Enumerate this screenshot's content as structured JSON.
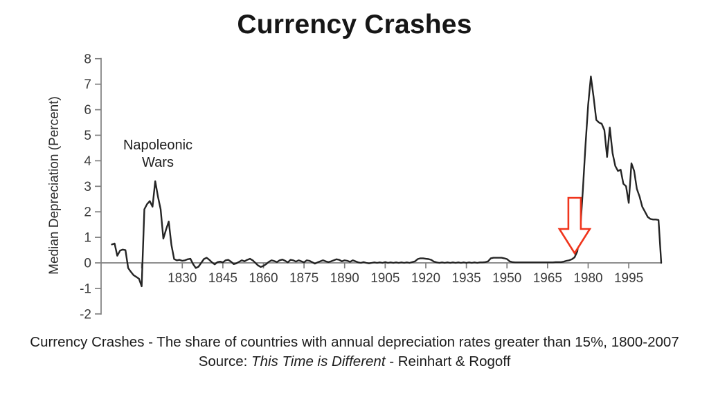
{
  "title": "Currency Crashes",
  "caption": {
    "line1": "Currency Crashes - The share of countries with annual depreciation rates greater than 15%, 1800-2007",
    "source_prefix": "Source: ",
    "source_italic": "This Time is Different",
    "source_suffix": " - Reinhart & Rogoff"
  },
  "chart_data": {
    "type": "line",
    "title": "Currency Crashes",
    "xlabel": "",
    "ylabel": "Median Depreciation (Percent)",
    "xlim": [
      1800,
      2007
    ],
    "ylim": [
      -2,
      8
    ],
    "grid": false,
    "legend": false,
    "y_ticks": [
      8,
      7,
      6,
      5,
      4,
      3,
      2,
      1,
      0,
      -1,
      -2
    ],
    "y_tick_labels": [
      "8",
      "7",
      "6",
      "5",
      "4",
      "3",
      "2",
      "1",
      "0",
      "-1",
      "-2"
    ],
    "x_ticks": [
      1815,
      1830,
      1845,
      1860,
      1875,
      1890,
      1905,
      1920,
      1935,
      1950,
      1965,
      1980,
      1995
    ],
    "x_tick_labels": [
      "",
      "1830",
      "1845",
      "1860",
      "1875",
      "1890",
      "1905",
      "1920",
      "1935",
      "1950",
      "1965",
      "1980",
      "1995"
    ],
    "line_color": "#242424",
    "axis_color": "#7e7e7e",
    "annotations": [
      {
        "id": "napoleonic-wars",
        "lines": [
          "Napoleonic",
          "Wars"
        ],
        "x_year": 1820,
        "y_value": 4.9
      },
      {
        "id": "crash-wave-arrow",
        "shape": "hollow-down-block-arrow",
        "color": "#f0351c",
        "x_year": 1975,
        "tip_y_value": 0.38
      }
    ],
    "series": [
      {
        "name": "Median depreciation (percent)",
        "points": [
          [
            1804,
            0.72
          ],
          [
            1805,
            0.76
          ],
          [
            1806,
            0.28
          ],
          [
            1807,
            0.48
          ],
          [
            1808,
            0.52
          ],
          [
            1809,
            0.5
          ],
          [
            1810,
            -0.2
          ],
          [
            1811,
            -0.35
          ],
          [
            1812,
            -0.48
          ],
          [
            1813,
            -0.55
          ],
          [
            1814,
            -0.62
          ],
          [
            1815,
            -0.92
          ],
          [
            1816,
            2.1
          ],
          [
            1817,
            2.3
          ],
          [
            1818,
            2.42
          ],
          [
            1819,
            2.2
          ],
          [
            1820,
            3.2
          ],
          [
            1821,
            2.6
          ],
          [
            1822,
            2.1
          ],
          [
            1823,
            0.95
          ],
          [
            1824,
            1.3
          ],
          [
            1825,
            1.62
          ],
          [
            1826,
            0.7
          ],
          [
            1827,
            0.15
          ],
          [
            1828,
            0.1
          ],
          [
            1829,
            0.12
          ],
          [
            1830,
            0.08
          ],
          [
            1831,
            0.1
          ],
          [
            1832,
            0.14
          ],
          [
            1833,
            0.16
          ],
          [
            1834,
            -0.05
          ],
          [
            1835,
            -0.2
          ],
          [
            1836,
            -0.15
          ],
          [
            1837,
            0.0
          ],
          [
            1838,
            0.15
          ],
          [
            1839,
            0.2
          ],
          [
            1840,
            0.12
          ],
          [
            1841,
            0.02
          ],
          [
            1842,
            -0.06
          ],
          [
            1843,
            0.03
          ],
          [
            1844,
            0.05
          ],
          [
            1845,
            0.02
          ],
          [
            1846,
            0.1
          ],
          [
            1847,
            0.12
          ],
          [
            1848,
            0.05
          ],
          [
            1849,
            -0.05
          ],
          [
            1850,
            -0.02
          ],
          [
            1851,
            0.04
          ],
          [
            1852,
            0.1
          ],
          [
            1853,
            0.06
          ],
          [
            1854,
            0.12
          ],
          [
            1855,
            0.16
          ],
          [
            1856,
            0.1
          ],
          [
            1857,
            0.0
          ],
          [
            1858,
            -0.1
          ],
          [
            1859,
            -0.16
          ],
          [
            1860,
            -0.12
          ],
          [
            1861,
            -0.05
          ],
          [
            1862,
            0.04
          ],
          [
            1863,
            0.1
          ],
          [
            1864,
            0.07
          ],
          [
            1865,
            0.03
          ],
          [
            1866,
            0.1
          ],
          [
            1867,
            0.13
          ],
          [
            1868,
            0.08
          ],
          [
            1869,
            0.02
          ],
          [
            1870,
            0.12
          ],
          [
            1871,
            0.1
          ],
          [
            1872,
            0.05
          ],
          [
            1873,
            0.1
          ],
          [
            1874,
            0.06
          ],
          [
            1875,
            0.02
          ],
          [
            1876,
            0.1
          ],
          [
            1877,
            0.08
          ],
          [
            1878,
            0.03
          ],
          [
            1879,
            -0.03
          ],
          [
            1880,
            0.02
          ],
          [
            1881,
            0.06
          ],
          [
            1882,
            0.1
          ],
          [
            1883,
            0.06
          ],
          [
            1884,
            0.03
          ],
          [
            1885,
            0.06
          ],
          [
            1886,
            0.1
          ],
          [
            1887,
            0.14
          ],
          [
            1888,
            0.12
          ],
          [
            1889,
            0.06
          ],
          [
            1890,
            0.1
          ],
          [
            1891,
            0.08
          ],
          [
            1892,
            0.04
          ],
          [
            1893,
            0.1
          ],
          [
            1894,
            0.06
          ],
          [
            1895,
            0.02
          ],
          [
            1896,
            0.0
          ],
          [
            1897,
            0.03
          ],
          [
            1898,
            0.0
          ],
          [
            1899,
            -0.02
          ],
          [
            1900,
            0.0
          ],
          [
            1901,
            0.02
          ],
          [
            1902,
            0.0
          ],
          [
            1903,
            0.02
          ],
          [
            1904,
            0.0
          ],
          [
            1905,
            0.03
          ],
          [
            1906,
            0.0
          ],
          [
            1907,
            0.02
          ],
          [
            1908,
            0.0
          ],
          [
            1909,
            0.02
          ],
          [
            1910,
            0.0
          ],
          [
            1911,
            0.02
          ],
          [
            1912,
            0.0
          ],
          [
            1913,
            0.02
          ],
          [
            1914,
            0.0
          ],
          [
            1915,
            0.03
          ],
          [
            1916,
            0.06
          ],
          [
            1917,
            0.15
          ],
          [
            1918,
            0.18
          ],
          [
            1919,
            0.18
          ],
          [
            1920,
            0.16
          ],
          [
            1921,
            0.15
          ],
          [
            1922,
            0.12
          ],
          [
            1923,
            0.05
          ],
          [
            1924,
            0.02
          ],
          [
            1925,
            0.0
          ],
          [
            1926,
            0.02
          ],
          [
            1927,
            0.0
          ],
          [
            1928,
            0.02
          ],
          [
            1929,
            0.0
          ],
          [
            1930,
            0.02
          ],
          [
            1931,
            0.0
          ],
          [
            1932,
            0.02
          ],
          [
            1933,
            0.0
          ],
          [
            1934,
            0.02
          ],
          [
            1935,
            0.0
          ],
          [
            1936,
            0.02
          ],
          [
            1937,
            0.0
          ],
          [
            1938,
            0.02
          ],
          [
            1939,
            0.0
          ],
          [
            1940,
            0.02
          ],
          [
            1941,
            0.02
          ],
          [
            1942,
            0.03
          ],
          [
            1943,
            0.06
          ],
          [
            1944,
            0.18
          ],
          [
            1945,
            0.2
          ],
          [
            1946,
            0.2
          ],
          [
            1947,
            0.2
          ],
          [
            1948,
            0.2
          ],
          [
            1949,
            0.18
          ],
          [
            1950,
            0.15
          ],
          [
            1951,
            0.06
          ],
          [
            1952,
            0.03
          ],
          [
            1953,
            0.02
          ],
          [
            1954,
            0.02
          ],
          [
            1955,
            0.02
          ],
          [
            1956,
            0.02
          ],
          [
            1957,
            0.02
          ],
          [
            1958,
            0.02
          ],
          [
            1959,
            0.02
          ],
          [
            1960,
            0.02
          ],
          [
            1961,
            0.02
          ],
          [
            1962,
            0.02
          ],
          [
            1963,
            0.02
          ],
          [
            1964,
            0.02
          ],
          [
            1965,
            0.02
          ],
          [
            1966,
            0.02
          ],
          [
            1967,
            0.02
          ],
          [
            1968,
            0.03
          ],
          [
            1969,
            0.03
          ],
          [
            1970,
            0.03
          ],
          [
            1971,
            0.05
          ],
          [
            1972,
            0.08
          ],
          [
            1973,
            0.1
          ],
          [
            1974,
            0.14
          ],
          [
            1975,
            0.22
          ],
          [
            1976,
            0.45
          ],
          [
            1977,
            1.2
          ],
          [
            1978,
            2.8
          ],
          [
            1979,
            4.6
          ],
          [
            1980,
            6.2
          ],
          [
            1981,
            7.3
          ],
          [
            1982,
            6.5
          ],
          [
            1983,
            5.6
          ],
          [
            1984,
            5.5
          ],
          [
            1985,
            5.45
          ],
          [
            1986,
            5.2
          ],
          [
            1987,
            4.15
          ],
          [
            1988,
            5.3
          ],
          [
            1989,
            4.3
          ],
          [
            1990,
            3.8
          ],
          [
            1991,
            3.6
          ],
          [
            1992,
            3.65
          ],
          [
            1993,
            3.1
          ],
          [
            1994,
            3.0
          ],
          [
            1995,
            2.35
          ],
          [
            1996,
            3.9
          ],
          [
            1997,
            3.6
          ],
          [
            1998,
            2.9
          ],
          [
            1999,
            2.6
          ],
          [
            2000,
            2.2
          ],
          [
            2001,
            2.0
          ],
          [
            2002,
            1.8
          ],
          [
            2003,
            1.72
          ],
          [
            2004,
            1.7
          ],
          [
            2005,
            1.7
          ],
          [
            2006,
            1.68
          ],
          [
            2007,
            0.0
          ]
        ]
      }
    ]
  }
}
